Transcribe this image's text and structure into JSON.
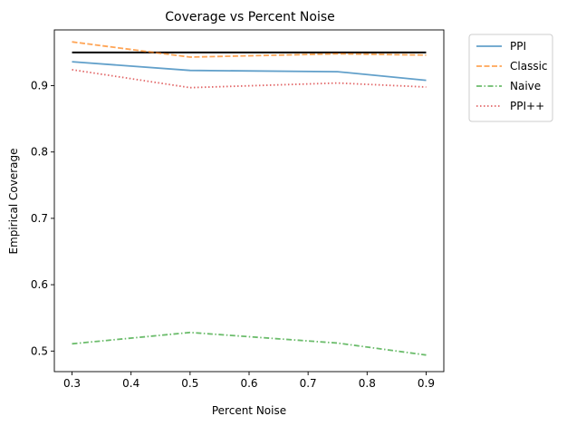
{
  "chart_data": {
    "type": "line",
    "title": "Coverage vs Percent Noise",
    "xlabel": "Percent Noise",
    "ylabel": "Empirical Coverage",
    "x": [
      0.3,
      0.5,
      0.75,
      0.9
    ],
    "xlim": [
      0.27,
      0.93
    ],
    "ylim": [
      0.469,
      0.984
    ],
    "xticks": [
      0.3,
      0.4,
      0.5,
      0.6,
      0.7,
      0.8,
      0.9
    ],
    "xtick_labels": [
      "0.3",
      "0.4",
      "0.5",
      "0.6",
      "0.7",
      "0.8",
      "0.9"
    ],
    "yticks": [
      0.5,
      0.6,
      0.7,
      0.8,
      0.9
    ],
    "ytick_labels": [
      "0.5",
      "0.6",
      "0.7",
      "0.8",
      "0.9"
    ],
    "grid": false,
    "legend_position": "outside-top-right",
    "reference_line": {
      "y": 0.95,
      "color": "#000000"
    },
    "series": [
      {
        "name": "PPI",
        "values": [
          0.936,
          0.923,
          0.921,
          0.908
        ],
        "color": "#1f77b4",
        "style": "solid"
      },
      {
        "name": "Classic",
        "values": [
          0.966,
          0.943,
          0.948,
          0.946
        ],
        "color": "#ff7f0e",
        "style": "dashed"
      },
      {
        "name": "Naive",
        "values": [
          0.511,
          0.528,
          0.512,
          0.494
        ],
        "color": "#2ca02c",
        "style": "dashdot"
      },
      {
        "name": "PPI++",
        "values": [
          0.924,
          0.897,
          0.904,
          0.898
        ],
        "color": "#d62728",
        "style": "dotted"
      }
    ]
  }
}
